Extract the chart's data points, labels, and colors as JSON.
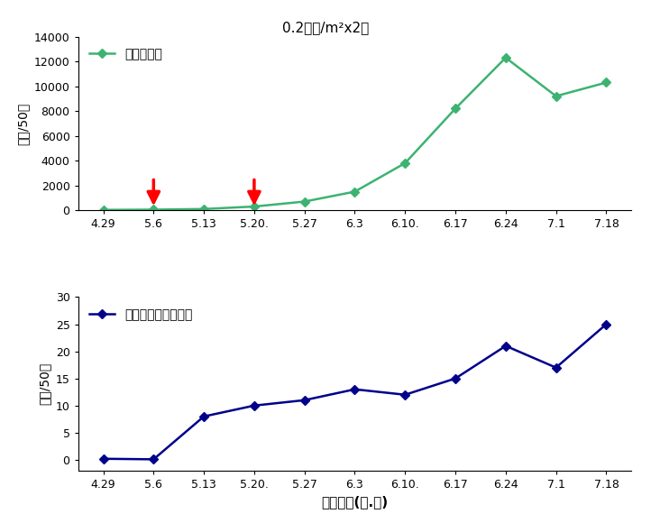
{
  "title": "0.2마리/m²x2회",
  "x_labels": [
    "4.29",
    "5.6",
    "5.13",
    "5.20.",
    "5.27",
    "6.3",
    "6.10.",
    "6.17",
    "6.24",
    "7.1",
    "7.18"
  ],
  "aphid_values": [
    30,
    50,
    100,
    300,
    700,
    1500,
    3800,
    8200,
    12300,
    9200,
    10300
  ],
  "ladybug_values": [
    0.2,
    0.1,
    8,
    10,
    11,
    13,
    12,
    15,
    21,
    17,
    25
  ],
  "aphid_color": "#3CB371",
  "ladybug_color": "#00008B",
  "aphid_label": "목화진딧물",
  "ladybug_label": "꽐마남생이무당벌레",
  "ylabel": "마리/50엽",
  "xlabel": "조사일자(월.일)",
  "arrow_indices": [
    1,
    3
  ],
  "aphid_ylim": [
    0,
    14000
  ],
  "aphid_yticks": [
    0,
    2000,
    4000,
    6000,
    8000,
    10000,
    12000,
    14000
  ],
  "ladybug_ylim": [
    -2,
    30
  ],
  "ladybug_yticks": [
    0,
    5,
    10,
    15,
    20,
    25,
    30
  ]
}
